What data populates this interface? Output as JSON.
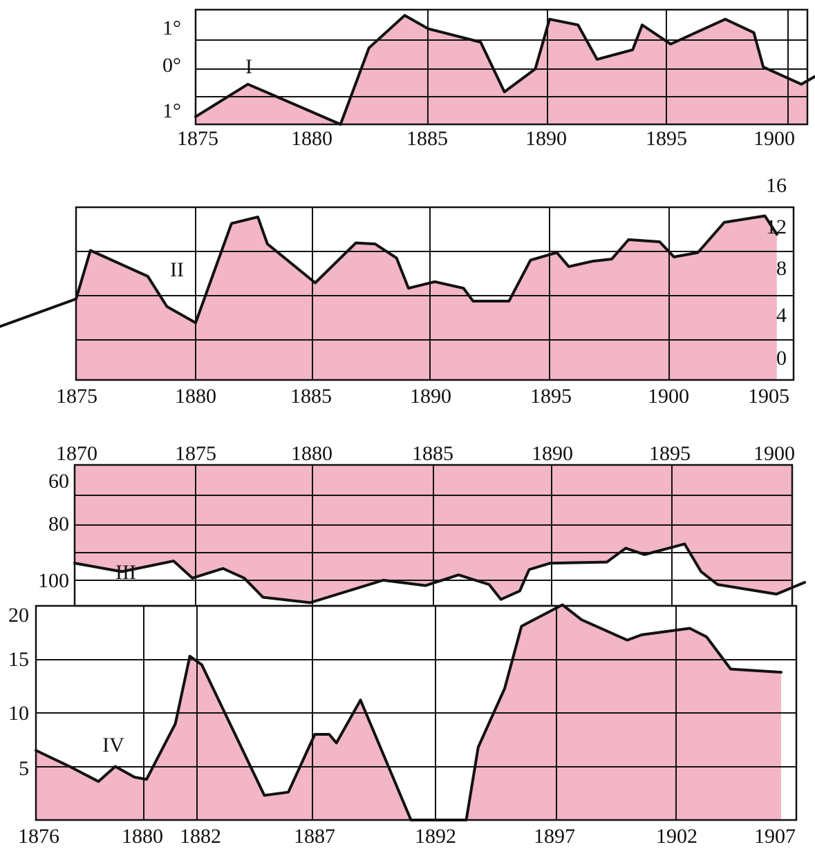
{
  "chart_data": [
    {
      "type": "area",
      "label": "I",
      "x_ticks": [
        "1875",
        "1880",
        "1885",
        "1890",
        "1895",
        "1900"
      ],
      "y_ticks": [
        "1°",
        "0°",
        "1°"
      ],
      "y_tick_values": [
        1,
        0,
        -1
      ],
      "ylim": [
        -1.5,
        1.5
      ],
      "xlim": [
        1875,
        1901.5
      ],
      "x": [
        1875,
        1877.2,
        1881.1,
        1882.3,
        1883.8,
        1884.8,
        1887,
        1888,
        1889.3,
        1889.9,
        1891.1,
        1891.9,
        1893.4,
        1893.8,
        1895,
        1897.3,
        1898.5,
        1898.9,
        1900.5,
        1901.5
      ],
      "values": [
        -1.3,
        -0.45,
        -1.5,
        0.5,
        1.35,
        1.0,
        0.65,
        -0.65,
        -0.05,
        1.25,
        1.1,
        0.2,
        0.45,
        1.1,
        0.6,
        1.25,
        0.9,
        0.0,
        -0.45,
        -0.1
      ]
    },
    {
      "type": "area",
      "label": "II",
      "x_ticks": [
        "1875",
        "1880",
        "1885",
        "1890",
        "1895",
        "1900",
        "1905"
      ],
      "y_ticks": [
        "16",
        "12",
        "8",
        "4",
        "0"
      ],
      "y_tick_values": [
        16,
        12,
        8,
        4,
        0
      ],
      "ylim": [
        0,
        16
      ],
      "xlim": [
        1871,
        1905.7
      ],
      "x": [
        1871,
        1871.5,
        1875,
        1875.6,
        1878,
        1878.8,
        1880,
        1881.5,
        1882.6,
        1883,
        1885,
        1886.7,
        1887.5,
        1888.4,
        1888.9,
        1890,
        1891.2,
        1891.6,
        1893.1,
        1894,
        1895.1,
        1895.6,
        1896.6,
        1897.4,
        1898.1,
        1899.4,
        1900,
        1901,
        1902.1,
        1903.8,
        1904.3
      ],
      "values": [
        5.5,
        4.7,
        7.5,
        12.0,
        9.6,
        6.8,
        5.3,
        14.5,
        15.1,
        12.6,
        9.0,
        12.7,
        12.6,
        11.3,
        8.5,
        9.1,
        8.5,
        7.3,
        7.3,
        11.1,
        11.8,
        10.5,
        11.0,
        11.2,
        13.0,
        12.8,
        11.4,
        11.8,
        14.6,
        15.2,
        13.5
      ]
    },
    {
      "type": "area",
      "label": "III",
      "x_ticks": [
        "1870",
        "1875",
        "1880",
        "1885",
        "1890",
        "1895",
        "1900"
      ],
      "y_ticks": [
        "60",
        "80",
        "100"
      ],
      "y_tick_values": [
        60,
        80,
        100
      ],
      "ylim": [
        54,
        120
      ],
      "y_reversed": true,
      "xlim": [
        1870,
        1901
      ],
      "x": [
        1870,
        1872,
        1874.2,
        1875,
        1876.3,
        1877.2,
        1878,
        1880,
        1883.1,
        1884.9,
        1886.3,
        1887.6,
        1888.1,
        1888.9,
        1889.3,
        1890.2,
        1891.1,
        1892.6,
        1893.4,
        1894.2,
        1895.9,
        1896.6,
        1897.3,
        1899.8,
        1901
      ],
      "values": [
        100,
        104,
        99,
        107,
        102.5,
        107,
        116,
        118.5,
        108,
        110.5,
        105.5,
        110,
        117,
        113,
        103,
        100,
        99.8,
        99.5,
        93,
        96,
        91,
        104,
        110,
        114.5,
        109
      ]
    },
    {
      "type": "area",
      "label": "IV",
      "x_ticks": [
        "1876",
        "1880",
        "1882",
        "1887",
        "1892",
        "1897",
        "1902",
        "1907"
      ],
      "y_ticks": [
        "20",
        "15",
        "10",
        "5"
      ],
      "y_tick_values": [
        20,
        15,
        10,
        5
      ],
      "ylim": [
        0,
        20
      ],
      "xlim": [
        1876,
        1907.5
      ],
      "x": [
        1876,
        1877.4,
        1878.6,
        1879.3,
        1880.1,
        1880.6,
        1881.8,
        1882.4,
        1882.9,
        1885.5,
        1886.5,
        1887.6,
        1888.2,
        1888.5,
        1889.5,
        1891.6,
        1893.9,
        1894.4,
        1895.5,
        1896.2,
        1897.9,
        1898.7,
        1900.6,
        1901.2,
        1903.2,
        1903.9,
        1904.9,
        1907
      ],
      "values": [
        6.5,
        5.0,
        3.6,
        5.0,
        4.0,
        3.8,
        9.0,
        15.3,
        14.5,
        2.3,
        2.6,
        8.0,
        8.0,
        7.2,
        11.2,
        0.0,
        0.0,
        6.8,
        12.3,
        18.1,
        20.1,
        18.7,
        16.8,
        17.3,
        17.9,
        17.1,
        14.1,
        13.8
      ]
    }
  ]
}
